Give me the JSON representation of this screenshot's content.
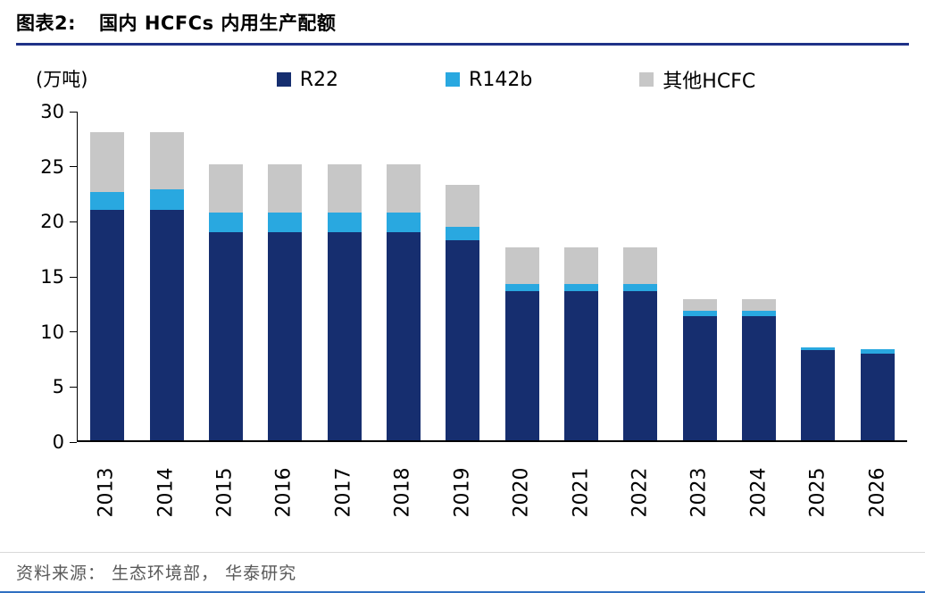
{
  "header": {
    "title_prefix": "图表2:",
    "title_text": "国内 HCFCs 内用生产配额"
  },
  "chart": {
    "unit_label": "(万吨)"
  },
  "chart_data": {
    "type": "bar",
    "stacked": true,
    "title": "国内 HCFCs 内用生产配额",
    "unit": "万吨",
    "categories": [
      "2013",
      "2014",
      "2015",
      "2016",
      "2017",
      "2018",
      "2019",
      "2020",
      "2021",
      "2022",
      "2023",
      "2024",
      "2025",
      "2026"
    ],
    "series": [
      {
        "name": "R22",
        "color": "#162e6f",
        "values": [
          21.0,
          21.0,
          19.0,
          19.0,
          19.0,
          19.0,
          18.3,
          13.6,
          13.6,
          13.6,
          11.3,
          11.3,
          8.2,
          7.9
        ]
      },
      {
        "name": "R142b",
        "color": "#29a8e0",
        "values": [
          1.7,
          1.9,
          1.8,
          1.8,
          1.8,
          1.8,
          1.2,
          0.7,
          0.7,
          0.7,
          0.5,
          0.5,
          0.3,
          0.4
        ]
      },
      {
        "name": "其他HCFC",
        "color": "#c7c7c7",
        "values": [
          5.4,
          5.2,
          4.4,
          4.4,
          4.4,
          4.4,
          3.8,
          3.3,
          3.3,
          3.3,
          1.1,
          1.1,
          0.0,
          0.0
        ]
      }
    ],
    "totals": [
      28.1,
      28.1,
      25.2,
      25.2,
      25.2,
      25.2,
      23.3,
      17.6,
      17.6,
      17.6,
      12.9,
      12.9,
      8.5,
      8.3
    ],
    "ylim": [
      0,
      30
    ],
    "yticks": [
      0,
      5,
      10,
      15,
      20,
      25,
      30
    ],
    "grid": false,
    "legend_position": "top",
    "x_label_rotation": -90
  },
  "footer": {
    "source": "资料来源： 生态环境部， 华泰研究"
  }
}
